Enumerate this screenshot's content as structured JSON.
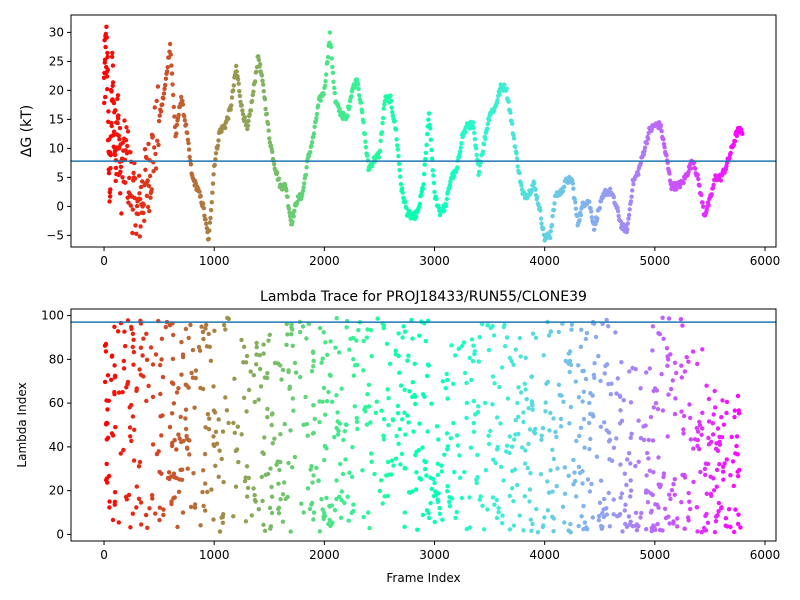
{
  "chart_data": [
    {
      "type": "scatter",
      "title": "",
      "xlabel": "",
      "ylabel": "ΔG (kT)",
      "xlim": [
        -300,
        6100
      ],
      "ylim": [
        -7,
        33
      ],
      "xticks": [
        0,
        1000,
        2000,
        3000,
        4000,
        5000,
        6000
      ],
      "yticks": [
        -5,
        0,
        5,
        10,
        15,
        20,
        25,
        30
      ],
      "hline": 7.8,
      "hline_color": "#1f77b4",
      "colormap": "rainbow",
      "series": [
        {
          "x": [
            0,
            25,
            50,
            75,
            100,
            125,
            150,
            200,
            250,
            300,
            350,
            400,
            450,
            500,
            550,
            600,
            650,
            700,
            750,
            800,
            850,
            900,
            950,
            1000,
            1050,
            1100,
            1150,
            1200,
            1250,
            1300,
            1350,
            1400,
            1450,
            1500,
            1550,
            1600,
            1650,
            1700,
            1750,
            1800,
            1850,
            1900,
            1950,
            2000,
            2050,
            2100,
            2150,
            2200,
            2250,
            2300,
            2350,
            2400,
            2450,
            2500,
            2550,
            2600,
            2650,
            2700,
            2750,
            2800,
            2850,
            2900,
            2950,
            3000,
            3050,
            3100,
            3150,
            3200,
            3250,
            3300,
            3350,
            3400,
            3450,
            3500,
            3550,
            3600,
            3650,
            3700,
            3750,
            3800,
            3850,
            3900,
            3950,
            4000,
            4050,
            4100,
            4150,
            4200,
            4250,
            4300,
            4350,
            4400,
            4450,
            4500,
            4550,
            4600,
            4650,
            4700,
            4750,
            4800,
            4850,
            4900,
            4950,
            5000,
            5050,
            5100,
            5150,
            5200,
            5250,
            5300,
            5350,
            5400,
            5450,
            5500,
            5550,
            5600,
            5650,
            5700,
            5750,
            5800
          ],
          "y": [
            20,
            28,
            2,
            22,
            10,
            15,
            5,
            9,
            3,
            -2,
            2,
            5,
            10,
            15,
            20,
            28,
            12,
            19,
            13,
            5,
            3,
            0,
            -6,
            7,
            13,
            14,
            17,
            24,
            17,
            13,
            19,
            26,
            20,
            12,
            7,
            3.5,
            3.5,
            -3,
            1,
            2,
            8,
            12,
            18,
            20,
            29.5,
            18,
            16,
            15,
            20,
            22,
            15,
            6.5,
            8,
            9,
            18.5,
            18.5,
            13,
            3,
            -1,
            -2,
            -1,
            4,
            16,
            2,
            -1,
            0,
            5,
            6,
            12,
            14,
            14,
            6,
            11,
            16,
            17,
            20.5,
            20.5,
            14.5,
            8,
            2,
            2,
            4,
            0,
            -5.5,
            -5,
            2,
            2.5,
            4.5,
            4.5,
            -3,
            0.5,
            1,
            -3.5,
            0,
            2.5,
            2.5,
            0,
            -3.5,
            -4,
            4,
            6,
            9.5,
            13,
            14,
            14,
            9,
            3.5,
            3.5,
            4,
            6,
            8,
            4,
            -1.5,
            1,
            5,
            5,
            7,
            10,
            13,
            13
          ]
        }
      ]
    },
    {
      "type": "scatter",
      "title": "Lambda Trace for PROJ18433/RUN55/CLONE39",
      "xlabel": "Frame Index",
      "ylabel": "Lambda Index",
      "xlim": [
        -300,
        6100
      ],
      "ylim": [
        -3,
        103
      ],
      "xticks": [
        0,
        1000,
        2000,
        3000,
        4000,
        5000,
        6000
      ],
      "yticks": [
        0,
        20,
        40,
        60,
        80,
        100
      ],
      "hline": 97,
      "hline_color": "#1f77b4",
      "colormap": "rainbow",
      "point_count": 1200,
      "band_note": "",
      "series": [
        {
          "x": [
            0,
            100,
            200,
            300,
            400,
            500,
            600,
            700,
            800,
            900,
            1000,
            1100,
            1200,
            1300,
            1400,
            1500,
            1600,
            1700,
            1800,
            1900,
            2000,
            2100,
            2200,
            2300,
            2400,
            2500,
            2600,
            2700,
            2800,
            2900,
            3000,
            3100,
            3200,
            3300,
            3400,
            3500,
            3600,
            3700,
            3800,
            3900,
            4000,
            4100,
            4200,
            4300,
            4400,
            4500,
            4600,
            4700,
            4800,
            4900,
            5000,
            5100,
            5200,
            5300,
            5400,
            5500,
            5600,
            5700,
            5800
          ],
          "y_min": [
            5,
            2,
            1,
            1,
            1,
            1,
            1,
            1,
            1,
            1,
            1,
            1,
            1,
            1,
            1,
            1,
            1,
            1,
            1,
            1,
            1,
            1,
            1,
            1,
            1,
            1,
            1,
            1,
            1,
            1,
            1,
            1,
            1,
            1,
            1,
            1,
            1,
            1,
            1,
            1,
            1,
            1,
            1,
            1,
            1,
            1,
            1,
            1,
            1,
            1,
            1,
            1,
            1,
            1,
            1,
            1,
            1,
            1,
            1
          ],
          "y_max": [
            94,
            99,
            99,
            99,
            99,
            99,
            99,
            99,
            99,
            99,
            99,
            99,
            99,
            95,
            99,
            99,
            80,
            99,
            99,
            99,
            99,
            99,
            99,
            99,
            99,
            99,
            99,
            99,
            99,
            99,
            60,
            75,
            90,
            99,
            99,
            99,
            99,
            99,
            99,
            99,
            99,
            99,
            99,
            99,
            99,
            99,
            99,
            80,
            80,
            75,
            99,
            99,
            99,
            99,
            95,
            70,
            65,
            66,
            66
          ]
        }
      ]
    }
  ]
}
